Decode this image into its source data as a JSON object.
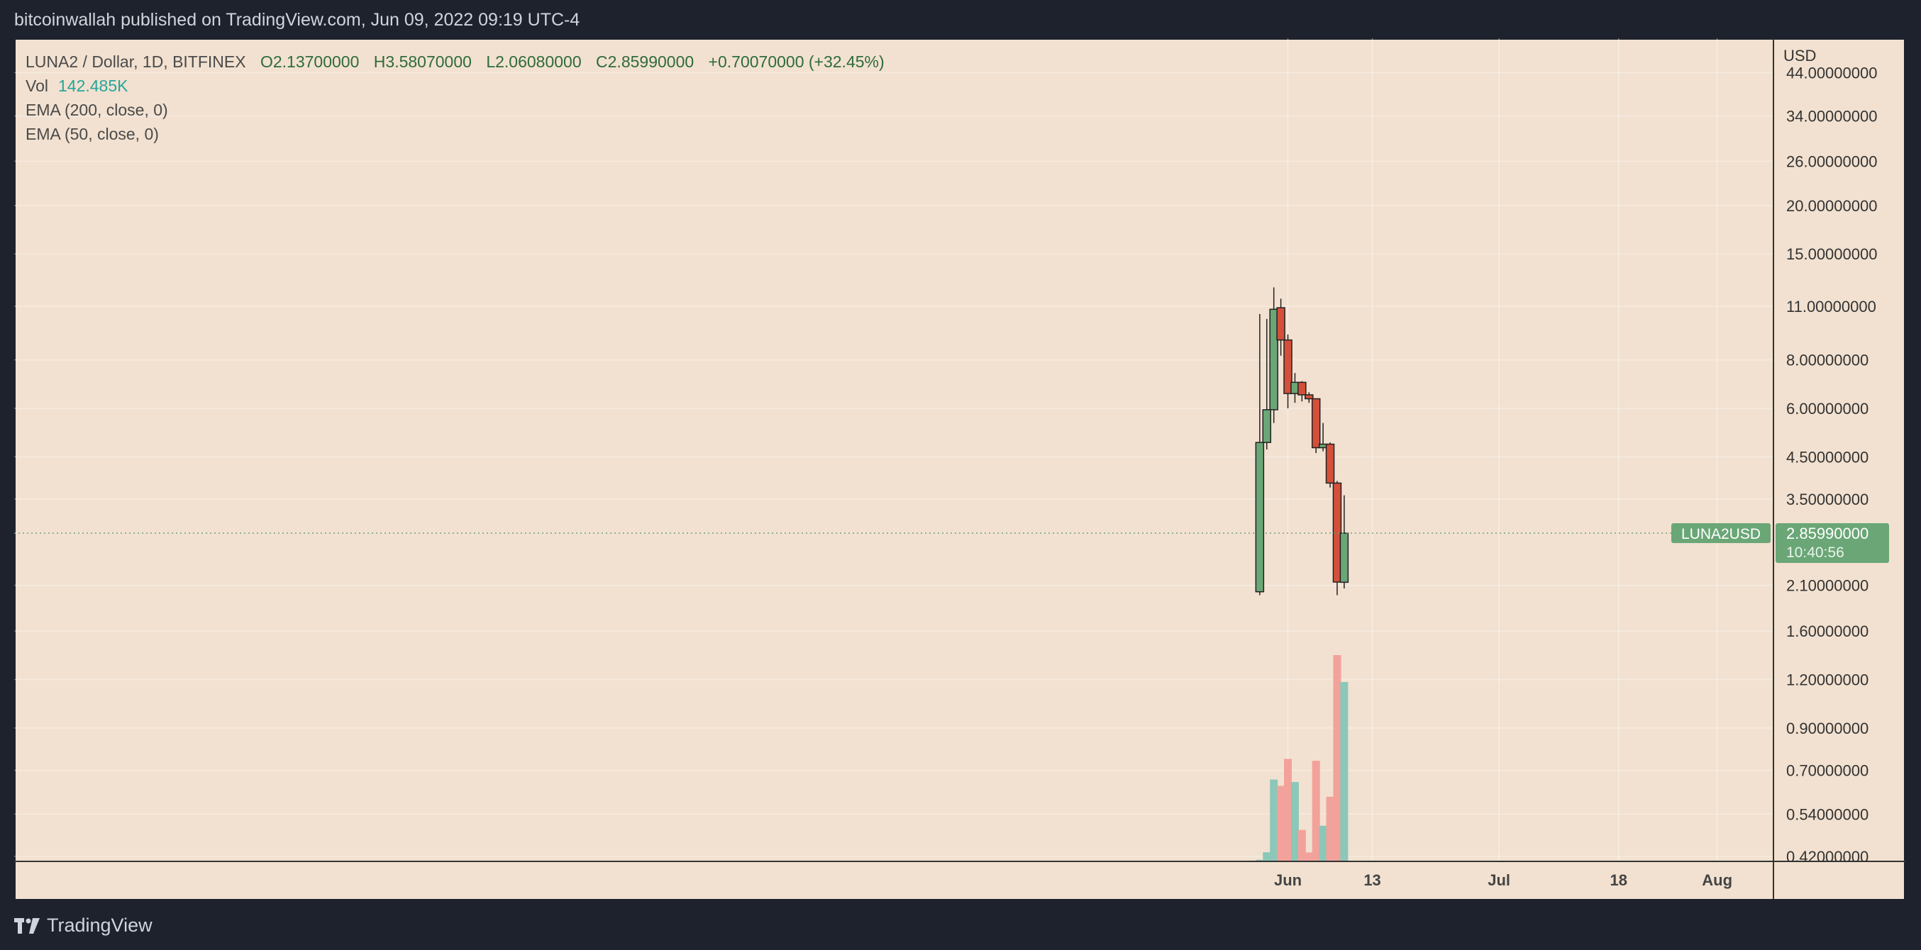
{
  "header": {
    "published_text": "bitcoinwallah published on TradingView.com, Jun 09, 2022 09:19 UTC-4"
  },
  "legend": {
    "symbol": "LUNA2 / Dollar, 1D, BITFINEX",
    "open_label": "O",
    "open": "2.13700000",
    "high_label": "H",
    "high": "3.58070000",
    "low_label": "L",
    "low": "2.06080000",
    "close_label": "C",
    "close": "2.85990000",
    "change": "+0.70070000 (+32.45%)",
    "vol_label": "Vol",
    "vol_value": "142.485K",
    "ema200": "EMA (200, close, 0)",
    "ema50": "EMA (50, close, 0)"
  },
  "price_axis": {
    "currency": "USD",
    "ticks": [
      "44.00000000",
      "34.00000000",
      "26.00000000",
      "20.00000000",
      "15.00000000",
      "11.00000000",
      "8.00000000",
      "6.00000000",
      "4.50000000",
      "3.50000000",
      "2.10000000",
      "1.60000000",
      "1.20000000",
      "0.90000000",
      "0.70000000",
      "0.54000000",
      "0.42000000"
    ]
  },
  "time_axis": {
    "labels": [
      "Jun",
      "13",
      "Jul",
      "18",
      "Aug"
    ]
  },
  "last_price": {
    "symbol_tag": "LUNA2USD",
    "price": "2.85990000",
    "countdown": "10:40:56"
  },
  "footer": {
    "brand": "TradingView"
  },
  "colors": {
    "background": "#f2e1d0",
    "up_body": "#6aa676",
    "down_body": "#d4503a",
    "vol_up": "#8cc7b9",
    "vol_down": "#f2a29a",
    "price_tag": "#6aa676"
  },
  "chart_data": {
    "type": "candlestick",
    "title": "LUNA2 / Dollar, 1D, BITFINEX",
    "scale": "log",
    "ylim": [
      0.42,
      50
    ],
    "x": [
      "2022-05-28",
      "2022-05-29",
      "2022-05-30",
      "2022-05-31",
      "2022-06-01",
      "2022-06-02",
      "2022-06-03",
      "2022-06-04",
      "2022-06-05",
      "2022-06-06",
      "2022-06-07",
      "2022-06-08",
      "2022-06-09"
    ],
    "candles": [
      {
        "date": "2022-05-28",
        "open": 2.02,
        "high": 10.5,
        "low": 1.98,
        "close": 4.9
      },
      {
        "date": "2022-05-29",
        "open": 4.9,
        "high": 10.2,
        "low": 4.7,
        "close": 5.95
      },
      {
        "date": "2022-05-30",
        "open": 5.95,
        "high": 12.3,
        "low": 5.5,
        "close": 10.8
      },
      {
        "date": "2022-05-31",
        "open": 10.9,
        "high": 11.5,
        "low": 8.2,
        "close": 9.0
      },
      {
        "date": "2022-06-01",
        "open": 9.0,
        "high": 9.3,
        "low": 6.0,
        "close": 6.55
      },
      {
        "date": "2022-06-02",
        "open": 6.55,
        "high": 7.4,
        "low": 6.2,
        "close": 7.0
      },
      {
        "date": "2022-06-03",
        "open": 7.0,
        "high": 7.05,
        "low": 6.25,
        "close": 6.5
      },
      {
        "date": "2022-06-04",
        "open": 6.5,
        "high": 6.6,
        "low": 6.2,
        "close": 6.35
      },
      {
        "date": "2022-06-05",
        "open": 6.35,
        "high": 6.35,
        "low": 4.6,
        "close": 4.75
      },
      {
        "date": "2022-06-06",
        "open": 4.75,
        "high": 5.5,
        "low": 4.65,
        "close": 4.85
      },
      {
        "date": "2022-06-07",
        "open": 4.85,
        "high": 4.9,
        "low": 3.75,
        "close": 3.85
      },
      {
        "date": "2022-06-08",
        "open": 3.85,
        "high": 3.9,
        "low": 1.98,
        "close": 2.14
      },
      {
        "date": "2022-06-09",
        "open": 2.137,
        "high": 3.5807,
        "low": 2.0608,
        "close": 2.8599
      }
    ],
    "volume": [
      {
        "date": "2022-05-28",
        "value": 0.7,
        "direction": "up"
      },
      {
        "date": "2022-05-29",
        "value": 6.7,
        "direction": "up"
      },
      {
        "date": "2022-05-30",
        "value": 64.7,
        "direction": "up"
      },
      {
        "date": "2022-05-31",
        "value": 59.7,
        "direction": "down"
      },
      {
        "date": "2022-06-01",
        "value": 81.2,
        "direction": "down"
      },
      {
        "date": "2022-06-02",
        "value": 62.7,
        "direction": "up"
      },
      {
        "date": "2022-06-03",
        "value": 24.5,
        "direction": "down"
      },
      {
        "date": "2022-06-04",
        "value": 6.6,
        "direction": "down"
      },
      {
        "date": "2022-06-05",
        "value": 79.7,
        "direction": "down"
      },
      {
        "date": "2022-06-06",
        "value": 27.9,
        "direction": "up"
      },
      {
        "date": "2022-06-07",
        "value": 51.0,
        "direction": "down"
      },
      {
        "date": "2022-06-08",
        "value": 164.0,
        "direction": "down"
      },
      {
        "date": "2022-06-09",
        "value": 142.485,
        "direction": "up"
      }
    ],
    "volume_unit": "K",
    "price_tick_values": [
      44,
      34,
      26,
      20,
      15,
      11,
      8,
      6,
      4.5,
      3.5,
      2.1,
      1.6,
      1.2,
      0.9,
      0.7,
      0.54,
      0.42
    ],
    "time_axis_dates": [
      "2022-06-01",
      "2022-06-13",
      "2022-07-01",
      "2022-07-18",
      "2022-08-01"
    ],
    "xlim": [
      "2021-12-02",
      "2022-08-09"
    ],
    "grid": true
  }
}
